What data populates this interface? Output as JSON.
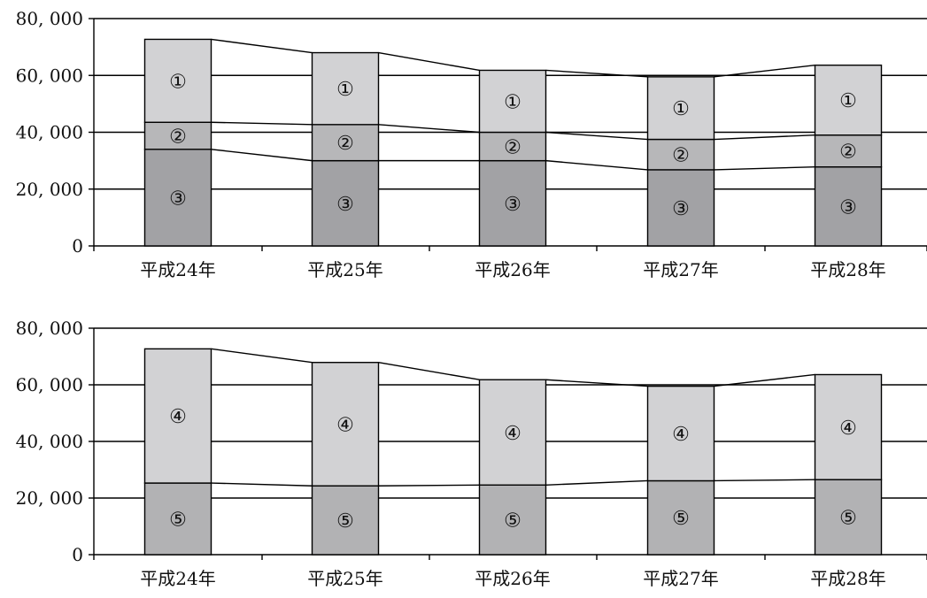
{
  "chart_data": [
    {
      "type": "bar",
      "stacked": true,
      "categories": [
        "平成24年",
        "平成25年",
        "平成26年",
        "平成27年",
        "平成28年"
      ],
      "y_ticks": [
        "0",
        "20, 000",
        "40, 000",
        "60, 000",
        "80, 000"
      ],
      "ylim": [
        0,
        80000
      ],
      "grid": true,
      "series_lines": true,
      "series": [
        {
          "name": "③",
          "values": [
            34000,
            30000,
            30000,
            26800,
            27800
          ],
          "color": "#a2a2a5"
        },
        {
          "name": "②",
          "values": [
            9500,
            12700,
            10000,
            10700,
            11200
          ],
          "color": "#b7b7b9"
        },
        {
          "name": "①",
          "values": [
            29200,
            25300,
            21800,
            22000,
            24600
          ],
          "color": "#d2d2d4"
        }
      ]
    },
    {
      "type": "bar",
      "stacked": true,
      "categories": [
        "平成24年",
        "平成25年",
        "平成26年",
        "平成27年",
        "平成28年"
      ],
      "y_ticks": [
        "0",
        "20, 000",
        "40, 000",
        "60, 000",
        "80, 000"
      ],
      "ylim": [
        0,
        80000
      ],
      "grid": true,
      "series_lines": true,
      "series": [
        {
          "name": "⑤",
          "values": [
            25300,
            24300,
            24600,
            26100,
            26500
          ],
          "color": "#b2b2b4"
        },
        {
          "name": "④",
          "values": [
            47400,
            43600,
            37200,
            33400,
            37100
          ],
          "color": "#d2d2d4"
        }
      ]
    }
  ]
}
